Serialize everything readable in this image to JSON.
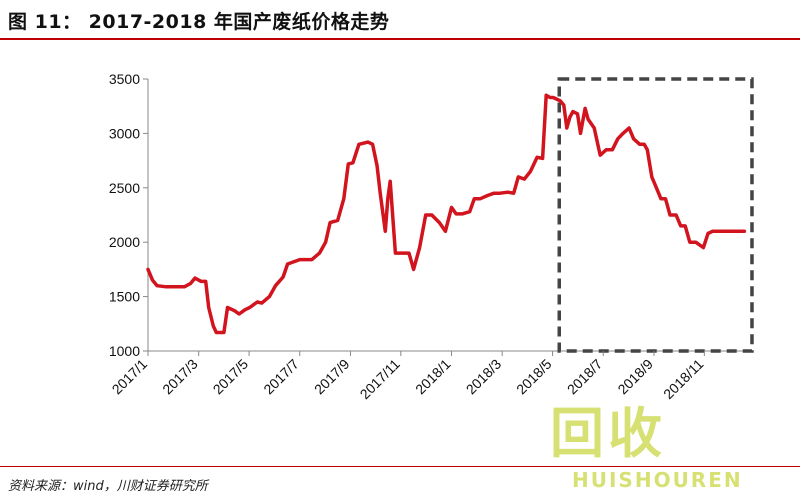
{
  "title": "图 11： 2017-2018 年国产废纸价格走势",
  "source": "资料来源：wind，川财证券研究所",
  "watermark": {
    "cn": "回收",
    "en": "HUISHOUREN"
  },
  "colors": {
    "line": "#d2141e",
    "title_rule": "#c00000",
    "highlight_box": "#444444",
    "watermark": "#b7c800"
  },
  "chart_data": {
    "type": "line",
    "title": "",
    "xlabel": "",
    "ylabel": "",
    "ylim": [
      1000,
      3500
    ],
    "yticks": [
      1000,
      1500,
      2000,
      2500,
      3000,
      3500
    ],
    "xlim": [
      2017.0,
      2018.967
    ],
    "xticks": [
      {
        "label": "2017/1",
        "x": 2017.0
      },
      {
        "label": "2017/3",
        "x": 2017.167
      },
      {
        "label": "2017/5",
        "x": 2017.333
      },
      {
        "label": "2017/7",
        "x": 2017.5
      },
      {
        "label": "2017/9",
        "x": 2017.667
      },
      {
        "label": "2017/11",
        "x": 2017.833
      },
      {
        "label": "2018/1",
        "x": 2018.0
      },
      {
        "label": "2018/3",
        "x": 2018.167
      },
      {
        "label": "2018/5",
        "x": 2018.333
      },
      {
        "label": "2018/7",
        "x": 2018.5
      },
      {
        "label": "2018/9",
        "x": 2018.667
      },
      {
        "label": "2018/11",
        "x": 2018.833
      }
    ],
    "grid": false,
    "highlight_region": {
      "x_start": 2018.355,
      "x_end": 2018.99,
      "y_start": 1000,
      "y_end": 3500
    },
    "series": [
      {
        "name": "",
        "x": [
          2017.0,
          2017.015,
          2017.03,
          2017.06,
          2017.1,
          2017.12,
          2017.14,
          2017.155,
          2017.175,
          2017.19,
          2017.2,
          2017.215,
          2017.225,
          2017.25,
          2017.262,
          2017.285,
          2017.3,
          2017.32,
          2017.335,
          2017.36,
          2017.375,
          2017.4,
          2017.42,
          2017.445,
          2017.46,
          2017.5,
          2017.515,
          2017.54,
          2017.565,
          2017.585,
          2017.6,
          2017.625,
          2017.645,
          2017.66,
          2017.675,
          2017.695,
          2017.71,
          2017.725,
          2017.74,
          2017.755,
          2017.765,
          2017.782,
          2017.79,
          2017.798,
          2017.815,
          2017.84,
          2017.86,
          2017.875,
          2017.895,
          2017.915,
          2017.935,
          2017.96,
          2017.98,
          2018.0,
          2018.015,
          2018.035,
          2018.06,
          2018.075,
          2018.095,
          2018.12,
          2018.14,
          2018.16,
          2018.185,
          2018.205,
          2018.22,
          2018.24,
          2018.26,
          2018.282,
          2018.3,
          2018.312,
          2018.325,
          2018.335,
          2018.358,
          2018.37,
          2018.38,
          2018.39,
          2018.4,
          2018.415,
          2018.425,
          2018.44,
          2018.45,
          2018.47,
          2018.49,
          2018.51,
          2018.53,
          2018.548,
          2018.565,
          2018.585,
          2018.6,
          2018.62,
          2018.635,
          2018.645,
          2018.66,
          2018.675,
          2018.69,
          2018.705,
          2018.72,
          2018.74,
          2018.755,
          2018.77,
          2018.785,
          2018.805,
          2018.815,
          2018.83,
          2018.845,
          2018.86,
          2018.87,
          2018.89,
          2018.905,
          2018.92,
          2018.935,
          2018.95,
          2018.965
        ],
        "y": [
          1750,
          1650,
          1600,
          1590,
          1590,
          1590,
          1620,
          1670,
          1640,
          1640,
          1400,
          1230,
          1170,
          1170,
          1400,
          1370,
          1340,
          1380,
          1400,
          1450,
          1440,
          1500,
          1600,
          1680,
          1800,
          1840,
          1840,
          1840,
          1900,
          2000,
          2180,
          2200,
          2400,
          2720,
          2730,
          2900,
          2910,
          2920,
          2900,
          2700,
          2450,
          2100,
          2400,
          2560,
          1900,
          1900,
          1900,
          1750,
          1950,
          2250,
          2250,
          2180,
          2100,
          2320,
          2260,
          2260,
          2280,
          2400,
          2400,
          2430,
          2450,
          2450,
          2460,
          2450,
          2600,
          2580,
          2650,
          2780,
          2770,
          3350,
          3330,
          3330,
          3300,
          3260,
          3050,
          3150,
          3200,
          3180,
          3000,
          3230,
          3130,
          3050,
          2800,
          2850,
          2850,
          2950,
          3000,
          3050,
          2950,
          2900,
          2900,
          2850,
          2600,
          2500,
          2400,
          2400,
          2250,
          2250,
          2150,
          2150,
          2000,
          2000,
          1980,
          1950,
          2080,
          2100,
          2100,
          2100,
          2100,
          2100,
          2100,
          2100,
          2100
        ]
      }
    ]
  }
}
